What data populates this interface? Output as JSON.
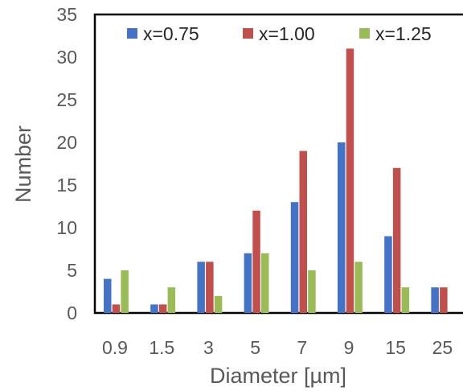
{
  "chart_data": {
    "type": "bar",
    "title": "",
    "xlabel": "Diameter [µm]",
    "ylabel": "Number",
    "ylim": [
      0,
      35
    ],
    "yticks": [
      0,
      5,
      10,
      15,
      20,
      25,
      30,
      35
    ],
    "grid": false,
    "legend_position": "top",
    "categories": [
      "0.9",
      "1.5",
      "3",
      "5",
      "7",
      "9",
      "15",
      "25"
    ],
    "series": [
      {
        "name": "x=0.75",
        "color": "#4472C4",
        "values": [
          4,
          1,
          6,
          7,
          13,
          20,
          9,
          3
        ]
      },
      {
        "name": "x=1.00",
        "color": "#C0504D",
        "values": [
          1,
          1,
          6,
          12,
          19,
          31,
          17,
          3
        ]
      },
      {
        "name": "x=1.25",
        "color": "#9BBB59",
        "values": [
          5,
          3,
          2,
          7,
          5,
          6,
          3,
          0
        ]
      }
    ]
  }
}
